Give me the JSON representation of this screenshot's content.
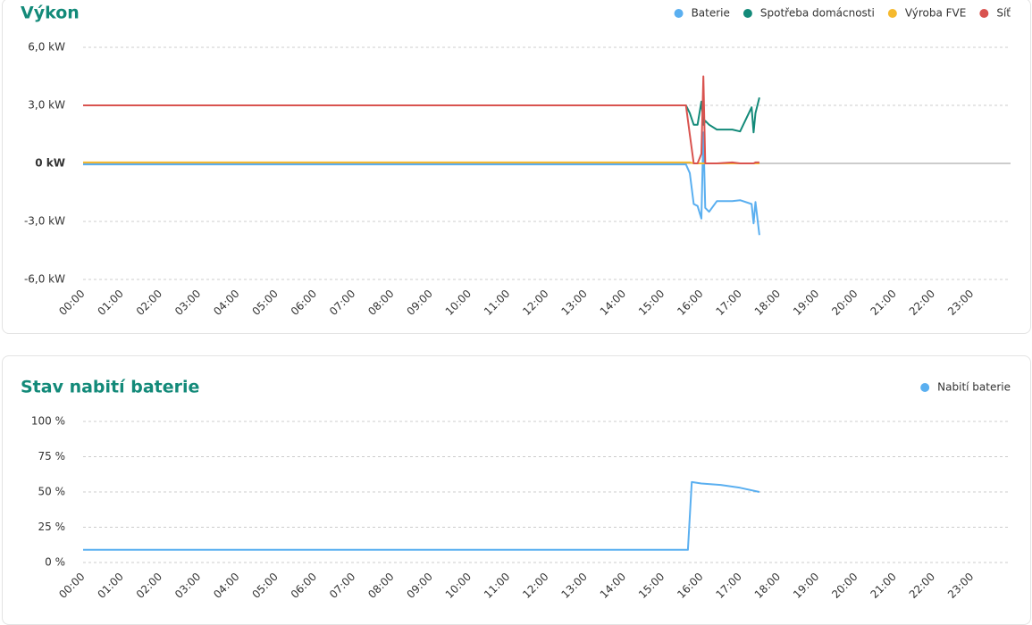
{
  "chart_data": [
    {
      "type": "line",
      "title": "Výkon",
      "x": [
        0,
        15.6,
        15.7,
        15.8,
        15.9,
        16.0,
        16.05,
        16.1,
        16.2,
        16.4,
        16.8,
        17.0,
        17.3,
        17.35,
        17.4,
        17.5
      ],
      "series": [
        {
          "name": "Baterie",
          "color": "#5aaff0",
          "values": [
            -0.05,
            -0.05,
            -0.5,
            -2.1,
            -2.2,
            -2.85,
            1.6,
            -2.3,
            -2.5,
            -1.95,
            -1.95,
            -1.9,
            -2.1,
            -3.1,
            -2.0,
            -3.7
          ]
        },
        {
          "name": "Spotřeba domácnosti",
          "color": "#138a79",
          "values": [
            3,
            3,
            2.6,
            2.0,
            2.0,
            3.2,
            2.0,
            2.2,
            2.0,
            1.75,
            1.75,
            1.65,
            2.9,
            1.6,
            2.6,
            3.4
          ]
        },
        {
          "name": "Výroba FVE",
          "color": "#f5b92e",
          "values": [
            0.05,
            0.05,
            0.05,
            0,
            0,
            0,
            0,
            0,
            0,
            0,
            0,
            0,
            0,
            0,
            0,
            0
          ]
        },
        {
          "name": "Síť",
          "color": "#d9534f",
          "values": [
            3,
            3,
            1.5,
            0,
            0,
            0.5,
            4.5,
            0,
            0,
            0,
            0.05,
            0,
            0,
            0,
            0.05,
            0.05
          ]
        }
      ],
      "xlim": [
        0,
        24
      ],
      "xticks": [
        {
          "value": 0,
          "label": "00:00"
        },
        {
          "value": 1,
          "label": "01:00"
        },
        {
          "value": 2,
          "label": "02:00"
        },
        {
          "value": 3,
          "label": "03:00"
        },
        {
          "value": 4,
          "label": "04:00"
        },
        {
          "value": 5,
          "label": "05:00"
        },
        {
          "value": 6,
          "label": "06:00"
        },
        {
          "value": 7,
          "label": "07:00"
        },
        {
          "value": 8,
          "label": "08:00"
        },
        {
          "value": 9,
          "label": "09:00"
        },
        {
          "value": 10,
          "label": "10:00"
        },
        {
          "value": 11,
          "label": "11:00"
        },
        {
          "value": 12,
          "label": "12:00"
        },
        {
          "value": 13,
          "label": "13:00"
        },
        {
          "value": 14,
          "label": "14:00"
        },
        {
          "value": 15,
          "label": "15:00"
        },
        {
          "value": 16,
          "label": "16:00"
        },
        {
          "value": 17,
          "label": "17:00"
        },
        {
          "value": 18,
          "label": "18:00"
        },
        {
          "value": 19,
          "label": "19:00"
        },
        {
          "value": 20,
          "label": "20:00"
        },
        {
          "value": 21,
          "label": "21:00"
        },
        {
          "value": 22,
          "label": "22:00"
        },
        {
          "value": 23,
          "label": "23:00"
        }
      ],
      "ylim": [
        -6,
        6
      ],
      "yticks": [
        {
          "value": 6,
          "label": "6,0 kW"
        },
        {
          "value": 3,
          "label": "3,0 kW"
        },
        {
          "value": 0,
          "label": "0 kW"
        },
        {
          "value": -3,
          "label": "-3,0 kW"
        },
        {
          "value": -6,
          "label": "-6,0 kW"
        }
      ],
      "grid": true,
      "legend": "top-right"
    },
    {
      "type": "line",
      "title": "Stav nabití baterie",
      "x": [
        0,
        15.65,
        15.75,
        16.0,
        16.5,
        17.0,
        17.5
      ],
      "series": [
        {
          "name": "Nabití baterie",
          "color": "#5aaff0",
          "values": [
            9,
            9,
            57,
            56,
            55,
            53,
            50
          ]
        }
      ],
      "xlim": [
        0,
        24
      ],
      "xticks": [
        {
          "value": 0,
          "label": "00:00"
        },
        {
          "value": 1,
          "label": "01:00"
        },
        {
          "value": 2,
          "label": "02:00"
        },
        {
          "value": 3,
          "label": "03:00"
        },
        {
          "value": 4,
          "label": "04:00"
        },
        {
          "value": 5,
          "label": "05:00"
        },
        {
          "value": 6,
          "label": "06:00"
        },
        {
          "value": 7,
          "label": "07:00"
        },
        {
          "value": 8,
          "label": "08:00"
        },
        {
          "value": 9,
          "label": "09:00"
        },
        {
          "value": 10,
          "label": "10:00"
        },
        {
          "value": 11,
          "label": "11:00"
        },
        {
          "value": 12,
          "label": "12:00"
        },
        {
          "value": 13,
          "label": "13:00"
        },
        {
          "value": 14,
          "label": "14:00"
        },
        {
          "value": 15,
          "label": "15:00"
        },
        {
          "value": 16,
          "label": "16:00"
        },
        {
          "value": 17,
          "label": "17:00"
        },
        {
          "value": 18,
          "label": "18:00"
        },
        {
          "value": 19,
          "label": "19:00"
        },
        {
          "value": 20,
          "label": "20:00"
        },
        {
          "value": 21,
          "label": "21:00"
        },
        {
          "value": 22,
          "label": "22:00"
        },
        {
          "value": 23,
          "label": "23:00"
        }
      ],
      "ylim": [
        0,
        100
      ],
      "yticks": [
        {
          "value": 100,
          "label": "100 %"
        },
        {
          "value": 75,
          "label": "75 %"
        },
        {
          "value": 50,
          "label": "50 %"
        },
        {
          "value": 25,
          "label": "25 %"
        },
        {
          "value": 0,
          "label": "0 %"
        }
      ],
      "grid": true,
      "legend": "top-right"
    }
  ]
}
